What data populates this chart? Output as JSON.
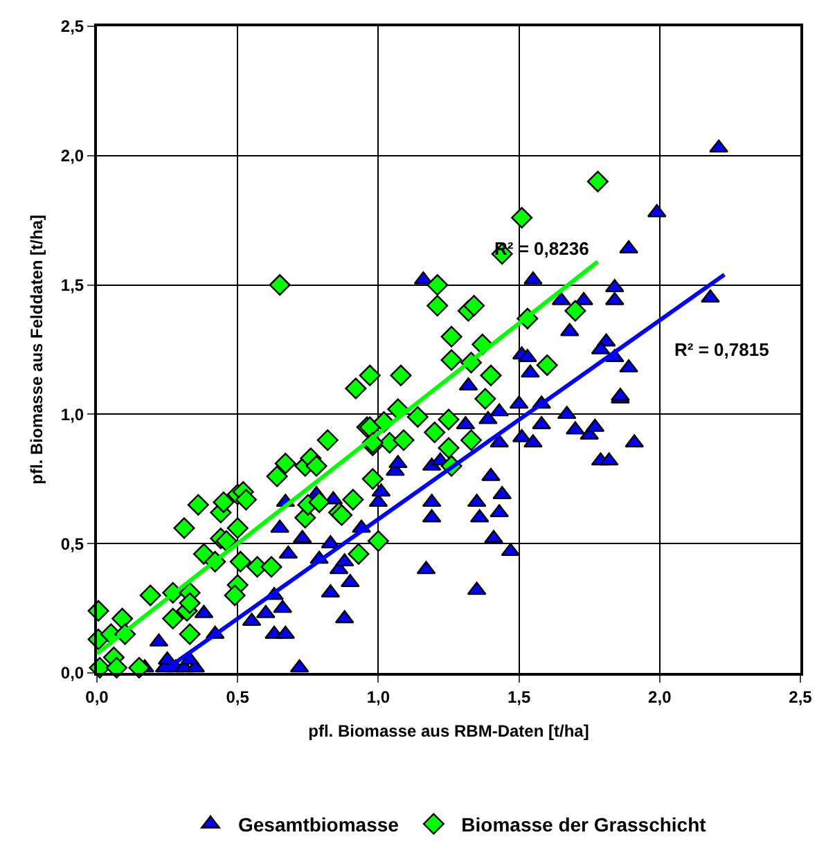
{
  "chart_data": {
    "type": "scatter",
    "xlabel": "pfl. Biomasse aus RBM-Daten [t/ha]",
    "ylabel": "pfl. Biomasse aus Felddaten [t/ha]",
    "xlim": [
      0,
      2.5
    ],
    "ylim": [
      0,
      2.5
    ],
    "xticks": [
      {
        "value": 0,
        "label": "0,0"
      },
      {
        "value": 0.5,
        "label": "0,5"
      },
      {
        "value": 1,
        "label": "1,0"
      },
      {
        "value": 1.5,
        "label": "1,5"
      },
      {
        "value": 2,
        "label": "2,0"
      },
      {
        "value": 2.5,
        "label": "2,5"
      }
    ],
    "yticks": [
      {
        "value": 0,
        "label": "0,0"
      },
      {
        "value": 0.5,
        "label": "0,5"
      },
      {
        "value": 1,
        "label": "1,0"
      },
      {
        "value": 1.5,
        "label": "1,5"
      },
      {
        "value": 2,
        "label": "2,0"
      },
      {
        "value": 2.5,
        "label": "2,5"
      }
    ],
    "grid": true,
    "legend": "bottom",
    "series": [
      {
        "name": "Gesamtbiomasse",
        "color": "#0000ff",
        "marker": "triangle",
        "x": [
          0.17,
          0.24,
          0.25,
          0.28,
          0.31,
          0.35,
          0.33,
          0.22,
          0.38,
          0.42,
          0.55,
          0.6,
          0.63,
          0.66,
          0.63,
          0.67,
          0.72,
          0.65,
          0.68,
          0.67,
          0.73,
          0.78,
          0.79,
          0.84,
          0.83,
          0.86,
          0.88,
          0.9,
          0.83,
          0.88,
          0.94,
          1.0,
          1.01,
          1.06,
          1.07,
          1.19,
          1.22,
          1.19,
          1.19,
          1.17,
          1.31,
          1.39,
          1.43,
          1.5,
          1.58,
          1.67,
          1.7,
          1.75,
          1.77,
          1.58,
          1.51,
          1.55,
          1.43,
          1.86,
          1.91,
          1.79,
          1.82,
          1.4,
          1.44,
          1.35,
          1.36,
          1.43,
          1.41,
          1.47,
          1.35,
          2.21,
          1.99,
          1.89,
          1.16,
          1.55,
          1.84,
          1.84,
          2.18,
          1.65,
          1.73,
          1.68,
          1.81,
          1.79,
          1.84,
          1.89,
          1.51,
          1.53,
          1.54,
          1.86,
          1.32
        ],
        "values": [
          0.02,
          0.02,
          0.05,
          0.02,
          0.02,
          0.02,
          0.05,
          0.12,
          0.23,
          0.15,
          0.2,
          0.23,
          0.3,
          0.25,
          0.15,
          0.15,
          0.02,
          0.56,
          0.46,
          0.66,
          0.52,
          0.69,
          0.44,
          0.67,
          0.5,
          0.4,
          0.43,
          0.35,
          0.31,
          0.21,
          0.56,
          0.66,
          0.7,
          0.78,
          0.81,
          0.8,
          0.82,
          0.66,
          0.6,
          0.4,
          0.96,
          0.98,
          1.01,
          1.04,
          1.04,
          1.0,
          0.94,
          0.92,
          0.95,
          0.96,
          0.91,
          0.89,
          0.89,
          1.06,
          0.89,
          0.82,
          0.82,
          0.76,
          0.69,
          0.66,
          0.6,
          0.62,
          0.52,
          0.47,
          0.32,
          2.03,
          1.78,
          1.64,
          1.52,
          1.52,
          1.49,
          1.44,
          1.45,
          1.44,
          1.44,
          1.32,
          1.28,
          1.25,
          1.22,
          1.18,
          1.23,
          1.22,
          1.16,
          1.07,
          1.11
        ]
      },
      {
        "name": "Biomasse der Grasschicht",
        "color": "#00ff00",
        "marker": "diamond",
        "x": [
          0.005,
          0.005,
          0.05,
          0.09,
          0.1,
          0.06,
          0.01,
          0.07,
          0.15,
          0.19,
          0.27,
          0.33,
          0.32,
          0.33,
          0.27,
          0.33,
          0.31,
          0.36,
          0.38,
          0.42,
          0.44,
          0.45,
          0.44,
          0.46,
          0.5,
          0.5,
          0.52,
          0.53,
          0.51,
          0.5,
          0.49,
          0.57,
          0.62,
          0.64,
          0.67,
          0.74,
          0.76,
          0.78,
          0.82,
          0.74,
          0.75,
          0.79,
          0.86,
          0.87,
          0.91,
          0.93,
          0.96,
          0.98,
          0.98,
          1.0,
          1.07,
          0.97,
          1.02,
          1.14,
          1.25,
          1.2,
          1.04,
          1.09,
          0.98,
          1.33,
          1.25,
          1.26,
          1.38,
          1.78,
          1.51,
          1.44,
          1.21,
          1.21,
          1.32,
          1.34,
          1.7,
          1.26,
          1.53,
          1.37,
          1.26,
          1.33,
          1.4,
          1.6,
          0.97,
          1.08,
          0.65,
          0.92
        ],
        "values": [
          0.24,
          0.13,
          0.15,
          0.21,
          0.15,
          0.06,
          0.02,
          0.02,
          0.02,
          0.3,
          0.31,
          0.31,
          0.24,
          0.27,
          0.21,
          0.15,
          0.56,
          0.65,
          0.46,
          0.43,
          0.62,
          0.66,
          0.52,
          0.51,
          0.56,
          0.69,
          0.7,
          0.67,
          0.43,
          0.34,
          0.3,
          0.41,
          0.41,
          0.76,
          0.81,
          0.8,
          0.83,
          0.8,
          0.9,
          0.6,
          0.65,
          0.66,
          0.62,
          0.61,
          0.67,
          0.46,
          0.95,
          0.88,
          0.75,
          0.51,
          1.02,
          0.95,
          0.97,
          0.99,
          0.98,
          0.93,
          0.89,
          0.9,
          0.89,
          0.9,
          0.87,
          0.8,
          1.06,
          1.9,
          1.76,
          1.62,
          1.5,
          1.42,
          1.4,
          1.42,
          1.4,
          1.3,
          1.37,
          1.27,
          1.21,
          1.2,
          1.15,
          1.19,
          1.15,
          1.15,
          1.5,
          1.1
        ]
      },
      {
        "type": "line",
        "color": "#00ff00",
        "x": [
          0,
          1.78
        ],
        "values": [
          0.075,
          1.59
        ]
      },
      {
        "type": "line",
        "color": "#0000ff",
        "x": [
          0.24,
          2.23
        ],
        "values": [
          0.01,
          1.54
        ]
      }
    ],
    "annotations": [
      "R² = 0,8236",
      "R² = 0,7815"
    ]
  }
}
